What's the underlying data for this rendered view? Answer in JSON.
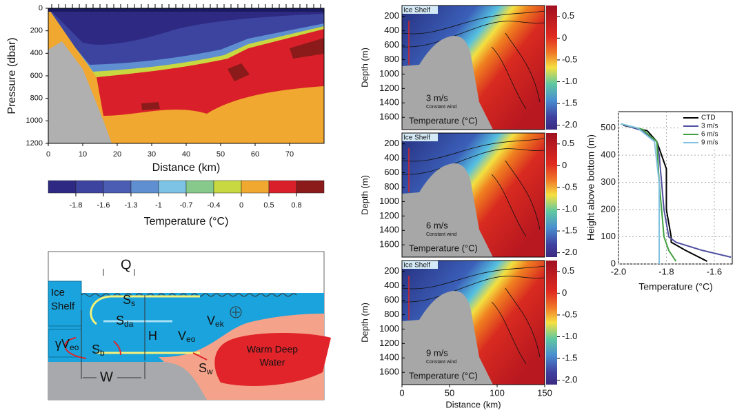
{
  "section": {
    "ylabel": "Pressure (dbar)",
    "xlabel": "Distance (km)",
    "ylim": [
      0,
      1200
    ],
    "yticks": [
      0,
      200,
      400,
      600,
      800,
      1000,
      1200
    ],
    "xlim": [
      0,
      80
    ],
    "xticks": [
      0,
      10,
      20,
      30,
      40,
      50,
      60,
      70
    ],
    "colorbar": {
      "label": "Temperature (°C)",
      "colors": [
        "#2e2a83",
        "#3c44a0",
        "#4b5db2",
        "#5f8fd0",
        "#7cc3e6",
        "#86c98a",
        "#c8d840",
        "#f0a830",
        "#d9202a",
        "#8b1a1a"
      ],
      "ticks": [
        -1.8,
        -1.6,
        -1.3,
        -1,
        -0.7,
        -0.4,
        0,
        0.5,
        0.8
      ]
    }
  },
  "schematic": {
    "Q": "Q",
    "ice_shelf": [
      "Ice",
      "Shelf"
    ],
    "labels": [
      {
        "main": "S",
        "sub": "s"
      },
      {
        "main": "S",
        "sub": "da"
      },
      {
        "main": "S",
        "sub": "b"
      },
      {
        "main": "S",
        "sub": "w"
      },
      {
        "main": "V",
        "sub": "ek"
      },
      {
        "main": "V",
        "sub": "eo"
      },
      {
        "main": "γV",
        "sub": "eo"
      }
    ],
    "H": "H",
    "W": "W",
    "warm": [
      "Warm Deep",
      "Water"
    ]
  },
  "model": {
    "ylabel": "Depth (m)",
    "xlabel": "Distance (km)",
    "ylim": [
      50,
      1770
    ],
    "yticks": [
      200,
      400,
      600,
      800,
      1000,
      1200,
      1400,
      1600
    ],
    "xlim": [
      0,
      150
    ],
    "xticks": [
      0,
      50,
      100,
      150
    ],
    "ice_label": "Ice Shelf",
    "note": "Constant wind",
    "field": "Temperature (°C)",
    "clim": [
      -2.1,
      0.75
    ],
    "cticks": [
      0.5,
      0,
      -0.5,
      {
        "value": -1,
        "label": "-1.0"
      },
      {
        "value": -1.5,
        "label": "-1.5"
      },
      {
        "value": -2,
        "label": "-2.0"
      }
    ],
    "panels": [
      {
        "wind": "3 m/s"
      },
      {
        "wind": "6 m/s"
      },
      {
        "wind": "9 m/s"
      }
    ]
  },
  "chart_data": {
    "type": "line",
    "xlabel": "Temperature (°C)",
    "ylabel": "Height above bottom (m)",
    "xlim": [
      -2.0,
      -1.525
    ],
    "xticks": [
      {
        "value": -2,
        "label": "-2.0"
      },
      {
        "value": -1.8,
        "label": "-1.8"
      },
      {
        "value": -1.6,
        "label": "-1.6"
      }
    ],
    "ylim": [
      0,
      560
    ],
    "yticks": [
      0,
      100,
      200,
      300,
      400,
      500
    ],
    "grid": true,
    "legend": "upper right",
    "series": [
      {
        "name": "CTD",
        "color": "#000000",
        "x": [
          -1.63,
          -1.72,
          -1.78,
          -1.78,
          -1.79,
          -1.8,
          -1.8,
          -1.8,
          -1.82,
          -1.84,
          -1.88,
          -1.98
        ],
        "y": [
          10,
          50,
          80,
          100,
          150,
          200,
          300,
          350,
          400,
          450,
          490,
          510
        ]
      },
      {
        "name": "3 m/s",
        "color": "#5050a0",
        "x": [
          -1.53,
          -1.65,
          -1.76,
          -1.79,
          -1.81,
          -1.82,
          -1.83,
          -1.84,
          -1.9,
          -1.99
        ],
        "y": [
          25,
          50,
          80,
          100,
          200,
          300,
          400,
          450,
          490,
          515
        ]
      },
      {
        "name": "6 m/s",
        "color": "#40a040",
        "x": [
          -1.76,
          -1.79,
          -1.81,
          -1.82,
          -1.83,
          -1.84,
          -1.9,
          -1.99
        ],
        "y": [
          10,
          50,
          100,
          200,
          300,
          450,
          495,
          515
        ]
      },
      {
        "name": "9 m/s",
        "color": "#80c0e0",
        "x": [
          -1.83,
          -1.83,
          -1.83,
          -1.85,
          -1.92,
          -1.99
        ],
        "y": [
          0,
          100,
          300,
          450,
          500,
          515
        ]
      }
    ]
  }
}
